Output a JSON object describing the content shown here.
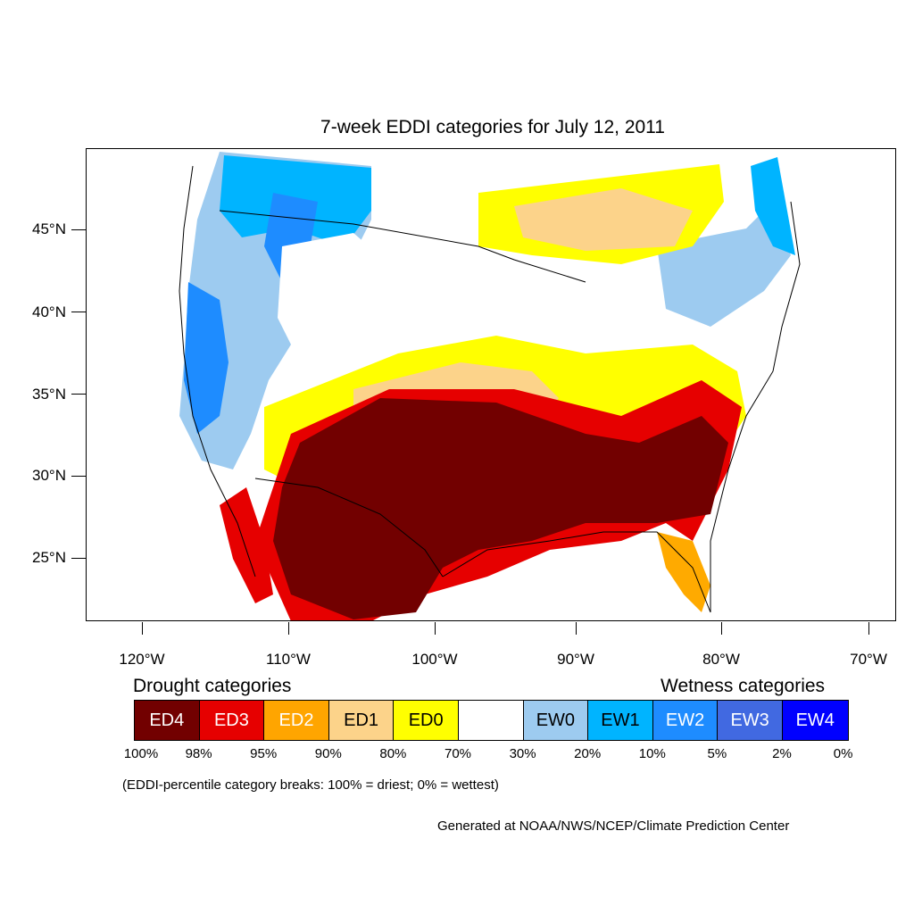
{
  "title": "7-week EDDI categories for July 12, 2011",
  "map": {
    "lat_labels": [
      "45°N",
      "40°N",
      "35°N",
      "30°N",
      "25°N"
    ],
    "lon_labels": [
      "120°W",
      "110°W",
      "100°W",
      "90°W",
      "80°W",
      "70°W"
    ],
    "region_colors": {
      "ED4": "#720000",
      "ED3": "#e60000",
      "ED2": "#ffaa00",
      "ED1": "#fcd38a",
      "ED0": "#ffff00",
      "NONE": "#ffffff",
      "EW0": "#9dcbf0",
      "EW1": "#00b4ff",
      "EW2": "#1e8cff",
      "EW3": "#4169e1",
      "EW4": "#0000ff"
    }
  },
  "legend": {
    "drought_title": "Drought categories",
    "wetness_title": "Wetness categories",
    "categories": [
      {
        "label": "ED4",
        "color": "#720000",
        "text_color": "#ffffff"
      },
      {
        "label": "ED3",
        "color": "#e60000",
        "text_color": "#ffffff"
      },
      {
        "label": "ED2",
        "color": "#ffa500",
        "text_color": "#ffffff"
      },
      {
        "label": "ED1",
        "color": "#fcd38a",
        "text_color": "#000000"
      },
      {
        "label": "ED0",
        "color": "#ffff00",
        "text_color": "#000000"
      },
      {
        "label": "",
        "color": "#ffffff",
        "text_color": "#000000"
      },
      {
        "label": "EW0",
        "color": "#9dcbf0",
        "text_color": "#000000"
      },
      {
        "label": "EW1",
        "color": "#00b4ff",
        "text_color": "#000000"
      },
      {
        "label": "EW2",
        "color": "#1e8cff",
        "text_color": "#ffffff"
      },
      {
        "label": "EW3",
        "color": "#4169e1",
        "text_color": "#ffffff"
      },
      {
        "label": "EW4",
        "color": "#0000ff",
        "text_color": "#ffffff"
      }
    ],
    "breaks": [
      "100%",
      "98%",
      "95%",
      "90%",
      "80%",
      "70%",
      "30%",
      "20%",
      "10%",
      "5%",
      "2%",
      "0%"
    ]
  },
  "note": "(EDDI-percentile category breaks: 100% = driest; 0% = wettest)",
  "credit": "Generated at NOAA/NWS/NCEP/Climate Prediction Center"
}
